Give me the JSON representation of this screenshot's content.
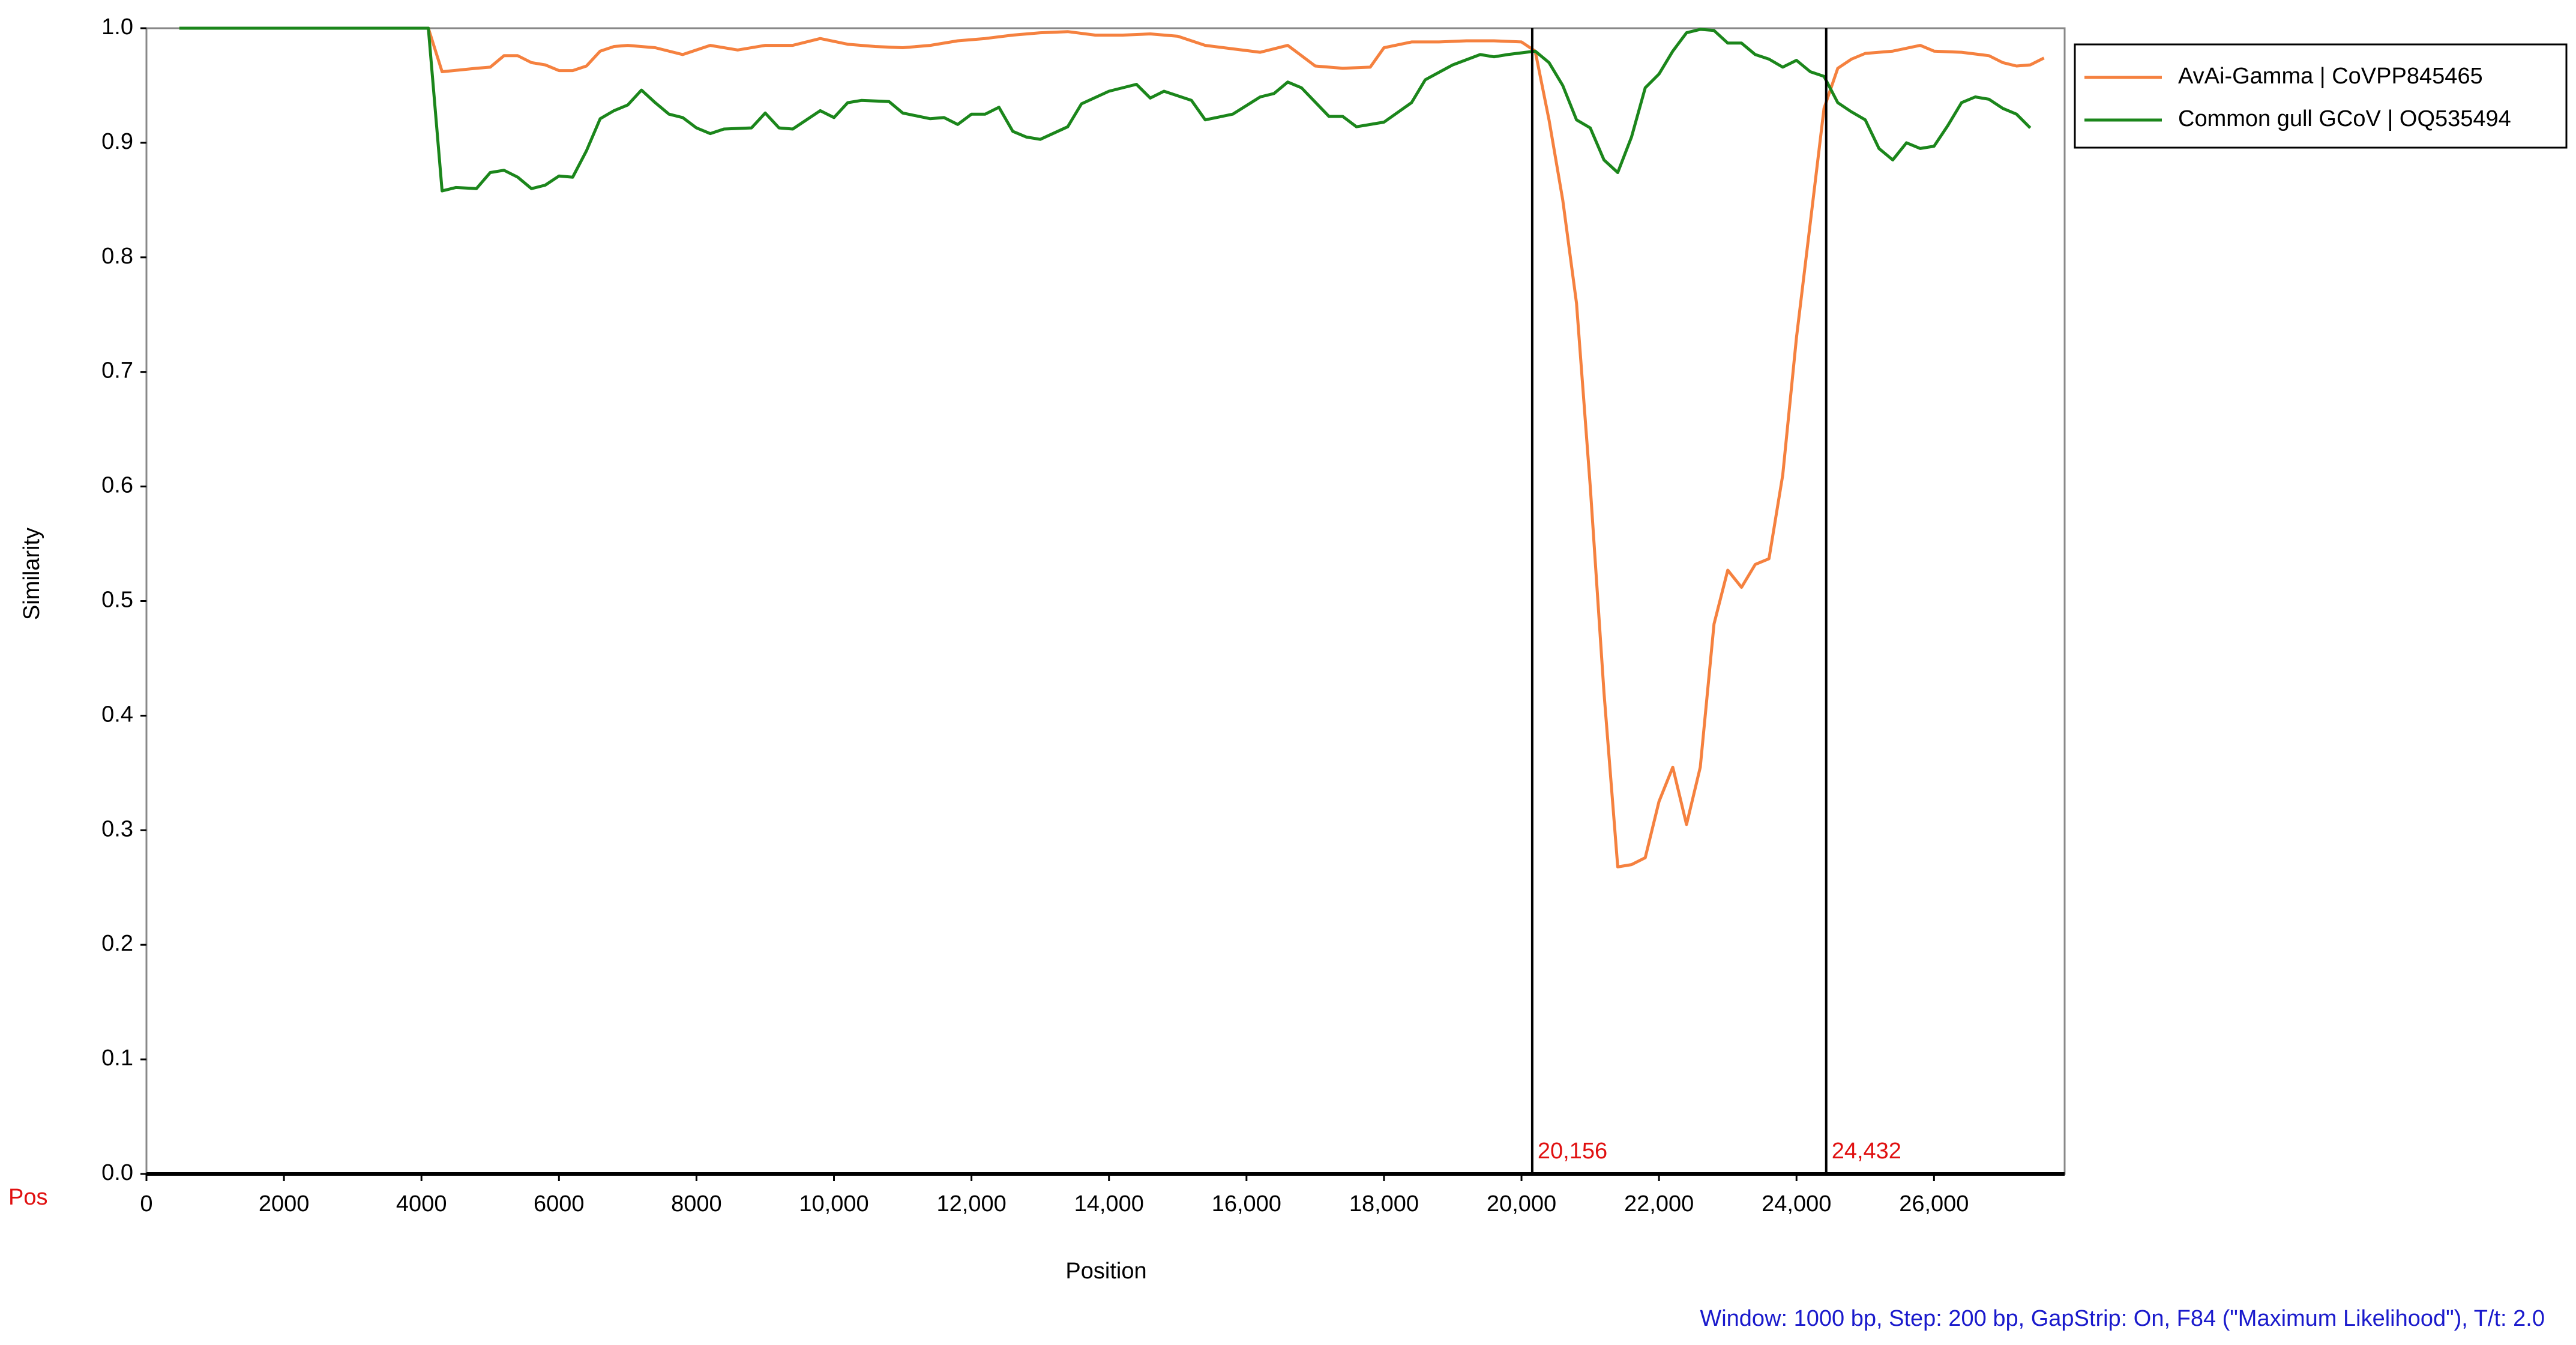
{
  "chart_data": {
    "type": "line",
    "xlabel": "Position",
    "ylabel": "Similarity",
    "axis_note": "Pos",
    "footer": "Window: 1000 bp, Step: 200 bp, GapStrip: On, F84 (\"Maximum Likelihood\"), T/t: 2.0",
    "xlim": [
      0,
      27900
    ],
    "ylim": [
      0,
      1
    ],
    "xticks": [
      0,
      2000,
      4000,
      6000,
      8000,
      {
        "value": 10000,
        "label": "10,000"
      },
      {
        "value": 12000,
        "label": "12,000"
      },
      {
        "value": 14000,
        "label": "14,000"
      },
      {
        "value": 16000,
        "label": "16,000"
      },
      {
        "value": 18000,
        "label": "18,000"
      },
      {
        "value": 20000,
        "label": "20,000"
      },
      {
        "value": 22000,
        "label": "22,000"
      },
      {
        "value": 24000,
        "label": "24,000"
      },
      {
        "value": 26000,
        "label": "26,000"
      }
    ],
    "yticks": [
      {
        "value": 0,
        "label": "0.0"
      },
      0.1,
      0.2,
      0.3,
      0.4,
      0.5,
      0.6,
      0.7,
      0.8,
      0.9,
      {
        "value": 1,
        "label": "1.0"
      }
    ],
    "breakpoints": [
      {
        "value": 20156,
        "label": "20,156"
      },
      {
        "value": 24432,
        "label": "24,432"
      }
    ],
    "legend": "top-right-outside",
    "series": [
      {
        "name": "AvAi-Gamma | CoVPP845465",
        "color": "#f5813f",
        "x": [
          478,
          4100,
          4300,
          4800,
          5000,
          5200,
          5400,
          5600,
          5800,
          6000,
          6200,
          6400,
          6600,
          6800,
          7000,
          7400,
          7800,
          8200,
          8600,
          9000,
          9400,
          9800,
          10200,
          10600,
          11000,
          11400,
          11800,
          12200,
          12600,
          13000,
          13400,
          13800,
          14200,
          14600,
          15000,
          15400,
          15800,
          16200,
          16600,
          17000,
          17400,
          17800,
          18000,
          18400,
          18800,
          19200,
          19600,
          20000,
          20200,
          20400,
          20600,
          20800,
          21000,
          21200,
          21400,
          21600,
          21800,
          22000,
          22200,
          22400,
          22600,
          22800,
          23000,
          23200,
          23400,
          23600,
          23800,
          24000,
          24200,
          24400,
          24600,
          24800,
          25000,
          25400,
          25800,
          26000,
          26400,
          26800,
          27000,
          27200,
          27400,
          27600
        ],
        "values": [
          1.0,
          1.0,
          0.962,
          0.965,
          0.966,
          0.976,
          0.976,
          0.97,
          0.968,
          0.963,
          0.963,
          0.967,
          0.98,
          0.984,
          0.985,
          0.983,
          0.977,
          0.985,
          0.981,
          0.985,
          0.985,
          0.991,
          0.986,
          0.984,
          0.983,
          0.985,
          0.989,
          0.991,
          0.994,
          0.996,
          0.997,
          0.994,
          0.994,
          0.995,
          0.993,
          0.985,
          0.982,
          0.979,
          0.985,
          0.967,
          0.965,
          0.966,
          0.983,
          0.988,
          0.988,
          0.989,
          0.989,
          0.988,
          0.98,
          0.92,
          0.85,
          0.76,
          0.6,
          0.42,
          0.268,
          0.27,
          0.276,
          0.325,
          0.355,
          0.305,
          0.355,
          0.48,
          0.527,
          0.512,
          0.532,
          0.537,
          0.61,
          0.73,
          0.83,
          0.93,
          0.965,
          0.973,
          0.978,
          0.98,
          0.985,
          0.98,
          0.979,
          0.976,
          0.97,
          0.967,
          0.968,
          0.974
        ]
      },
      {
        "name": "Common gull GCoV | OQ535494",
        "color": "#1b861b",
        "x": [
          478,
          4100,
          4300,
          4500,
          4800,
          5000,
          5200,
          5400,
          5600,
          5800,
          6000,
          6200,
          6400,
          6600,
          6800,
          7000,
          7200,
          7400,
          7600,
          7800,
          8000,
          8200,
          8400,
          8800,
          9000,
          9200,
          9400,
          9800,
          10000,
          10200,
          10400,
          10800,
          11000,
          11400,
          11600,
          11800,
          12000,
          12200,
          12400,
          12600,
          12800,
          13000,
          13400,
          13600,
          14000,
          14400,
          14600,
          14800,
          15200,
          15400,
          15800,
          16200,
          16400,
          16600,
          16800,
          17200,
          17400,
          17600,
          18000,
          18400,
          18600,
          19000,
          19400,
          19600,
          19800,
          20200,
          20400,
          20600,
          20800,
          21000,
          21200,
          21400,
          21600,
          21800,
          22000,
          22200,
          22400,
          22600,
          22800,
          23000,
          23200,
          23400,
          23600,
          23800,
          24000,
          24200,
          24400,
          24600,
          24800,
          25000,
          25200,
          25400,
          25600,
          25800,
          26000,
          26200,
          26400,
          26600,
          26800,
          27000,
          27200,
          27400
        ],
        "values": [
          1.0,
          1.0,
          0.858,
          0.861,
          0.86,
          0.874,
          0.876,
          0.87,
          0.86,
          0.863,
          0.871,
          0.87,
          0.893,
          0.921,
          0.928,
          0.933,
          0.946,
          0.935,
          0.925,
          0.922,
          0.913,
          0.908,
          0.912,
          0.913,
          0.926,
          0.913,
          0.912,
          0.928,
          0.922,
          0.935,
          0.937,
          0.936,
          0.926,
          0.921,
          0.922,
          0.916,
          0.925,
          0.925,
          0.931,
          0.91,
          0.905,
          0.903,
          0.914,
          0.934,
          0.945,
          0.951,
          0.939,
          0.945,
          0.937,
          0.92,
          0.925,
          0.94,
          0.943,
          0.953,
          0.948,
          0.923,
          0.923,
          0.914,
          0.918,
          0.935,
          0.955,
          0.968,
          0.977,
          0.975,
          0.977,
          0.98,
          0.97,
          0.95,
          0.92,
          0.913,
          0.885,
          0.874,
          0.905,
          0.948,
          0.96,
          0.98,
          0.996,
          0.999,
          0.998,
          0.987,
          0.987,
          0.977,
          0.973,
          0.966,
          0.972,
          0.962,
          0.958,
          0.935,
          0.927,
          0.92,
          0.895,
          0.885,
          0.9,
          0.895,
          0.897,
          0.915,
          0.935,
          0.94,
          0.938,
          0.93,
          0.925,
          0.913
        ]
      }
    ]
  }
}
